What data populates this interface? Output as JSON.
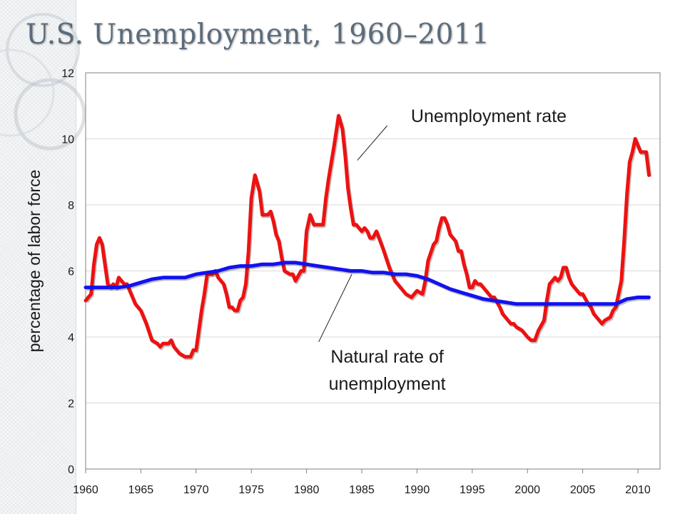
{
  "slide": {
    "title": "U.S. Unemployment, 1960–2011"
  },
  "chart_data": {
    "type": "line",
    "title": "",
    "xlabel": "",
    "ylabel": "percentage of labor force",
    "xlim": [
      1960,
      2011
    ],
    "ylim": [
      0,
      12
    ],
    "x_ticks": [
      "1960",
      "1965",
      "1970",
      "1975",
      "1980",
      "1985",
      "1990",
      "1995",
      "2000",
      "2005",
      "2010"
    ],
    "y_ticks": [
      "0",
      "2",
      "4",
      "6",
      "8",
      "10",
      "12"
    ],
    "grid": true,
    "series": [
      {
        "name": "Unemployment rate",
        "color": "#ee1111",
        "points": [
          [
            1960.0,
            5.1
          ],
          [
            1960.5,
            5.3
          ],
          [
            1960.75,
            6.2
          ],
          [
            1961.0,
            6.8
          ],
          [
            1961.25,
            7.0
          ],
          [
            1961.5,
            6.8
          ],
          [
            1961.75,
            6.2
          ],
          [
            1962.0,
            5.6
          ],
          [
            1962.25,
            5.5
          ],
          [
            1962.5,
            5.6
          ],
          [
            1962.75,
            5.5
          ],
          [
            1963.0,
            5.8
          ],
          [
            1963.25,
            5.7
          ],
          [
            1963.5,
            5.6
          ],
          [
            1963.75,
            5.6
          ],
          [
            1964.0,
            5.4
          ],
          [
            1964.5,
            5.0
          ],
          [
            1964.75,
            4.9
          ],
          [
            1965.0,
            4.8
          ],
          [
            1965.5,
            4.4
          ],
          [
            1966.0,
            3.9
          ],
          [
            1966.5,
            3.8
          ],
          [
            1966.75,
            3.7
          ],
          [
            1967.0,
            3.8
          ],
          [
            1967.5,
            3.8
          ],
          [
            1967.75,
            3.9
          ],
          [
            1968.0,
            3.7
          ],
          [
            1968.5,
            3.5
          ],
          [
            1969.0,
            3.4
          ],
          [
            1969.5,
            3.4
          ],
          [
            1969.75,
            3.6
          ],
          [
            1970.0,
            3.6
          ],
          [
            1970.5,
            4.8
          ],
          [
            1970.75,
            5.3
          ],
          [
            1971.0,
            5.9
          ],
          [
            1971.5,
            5.9
          ],
          [
            1971.75,
            6.0
          ],
          [
            1972.0,
            5.8
          ],
          [
            1972.5,
            5.6
          ],
          [
            1972.75,
            5.3
          ],
          [
            1973.0,
            4.9
          ],
          [
            1973.25,
            4.9
          ],
          [
            1973.5,
            4.8
          ],
          [
            1973.75,
            4.8
          ],
          [
            1974.0,
            5.1
          ],
          [
            1974.25,
            5.2
          ],
          [
            1974.5,
            5.6
          ],
          [
            1974.75,
            6.6
          ],
          [
            1975.0,
            8.2
          ],
          [
            1975.33,
            8.9
          ],
          [
            1975.75,
            8.4
          ],
          [
            1976.0,
            7.7
          ],
          [
            1976.5,
            7.7
          ],
          [
            1976.75,
            7.8
          ],
          [
            1977.0,
            7.5
          ],
          [
            1977.25,
            7.1
          ],
          [
            1977.5,
            6.9
          ],
          [
            1977.75,
            6.4
          ],
          [
            1978.0,
            6.0
          ],
          [
            1978.5,
            5.9
          ],
          [
            1978.75,
            5.9
          ],
          [
            1979.0,
            5.7
          ],
          [
            1979.5,
            6.0
          ],
          [
            1979.75,
            6.0
          ],
          [
            1980.0,
            7.2
          ],
          [
            1980.33,
            7.7
          ],
          [
            1980.67,
            7.4
          ],
          [
            1981.0,
            7.4
          ],
          [
            1981.5,
            7.4
          ],
          [
            1981.75,
            8.2
          ],
          [
            1982.0,
            8.8
          ],
          [
            1982.5,
            9.8
          ],
          [
            1982.9,
            10.7
          ],
          [
            1983.25,
            10.3
          ],
          [
            1983.5,
            9.5
          ],
          [
            1983.75,
            8.5
          ],
          [
            1984.0,
            7.9
          ],
          [
            1984.25,
            7.4
          ],
          [
            1984.5,
            7.4
          ],
          [
            1984.75,
            7.3
          ],
          [
            1985.0,
            7.2
          ],
          [
            1985.25,
            7.3
          ],
          [
            1985.5,
            7.2
          ],
          [
            1985.75,
            7.0
          ],
          [
            1986.0,
            7.0
          ],
          [
            1986.33,
            7.2
          ],
          [
            1986.67,
            6.9
          ],
          [
            1987.0,
            6.6
          ],
          [
            1987.5,
            6.1
          ],
          [
            1987.75,
            5.9
          ],
          [
            1988.0,
            5.7
          ],
          [
            1988.5,
            5.5
          ],
          [
            1988.75,
            5.4
          ],
          [
            1989.0,
            5.3
          ],
          [
            1989.5,
            5.2
          ],
          [
            1989.75,
            5.3
          ],
          [
            1990.0,
            5.4
          ],
          [
            1990.5,
            5.3
          ],
          [
            1990.75,
            5.7
          ],
          [
            1991.0,
            6.3
          ],
          [
            1991.5,
            6.8
          ],
          [
            1991.75,
            6.9
          ],
          [
            1992.0,
            7.3
          ],
          [
            1992.25,
            7.6
          ],
          [
            1992.5,
            7.6
          ],
          [
            1992.75,
            7.4
          ],
          [
            1993.0,
            7.1
          ],
          [
            1993.5,
            6.9
          ],
          [
            1993.75,
            6.6
          ],
          [
            1994.0,
            6.6
          ],
          [
            1994.25,
            6.2
          ],
          [
            1994.5,
            5.9
          ],
          [
            1994.75,
            5.5
          ],
          [
            1995.0,
            5.5
          ],
          [
            1995.25,
            5.7
          ],
          [
            1995.5,
            5.6
          ],
          [
            1995.75,
            5.6
          ],
          [
            1996.0,
            5.5
          ],
          [
            1996.5,
            5.3
          ],
          [
            1996.75,
            5.2
          ],
          [
            1997.0,
            5.2
          ],
          [
            1997.5,
            4.9
          ],
          [
            1997.75,
            4.7
          ],
          [
            1998.0,
            4.6
          ],
          [
            1998.5,
            4.4
          ],
          [
            1998.75,
            4.4
          ],
          [
            1999.0,
            4.3
          ],
          [
            1999.5,
            4.2
          ],
          [
            1999.75,
            4.1
          ],
          [
            2000.0,
            4.0
          ],
          [
            2000.33,
            3.9
          ],
          [
            2000.67,
            3.9
          ],
          [
            2001.0,
            4.2
          ],
          [
            2001.5,
            4.5
          ],
          [
            2001.75,
            5.1
          ],
          [
            2002.0,
            5.6
          ],
          [
            2002.5,
            5.8
          ],
          [
            2002.75,
            5.7
          ],
          [
            2003.0,
            5.8
          ],
          [
            2003.25,
            6.1
          ],
          [
            2003.5,
            6.1
          ],
          [
            2003.75,
            5.8
          ],
          [
            2004.0,
            5.6
          ],
          [
            2004.25,
            5.5
          ],
          [
            2004.5,
            5.4
          ],
          [
            2004.75,
            5.3
          ],
          [
            2005.0,
            5.3
          ],
          [
            2005.5,
            5.0
          ],
          [
            2005.75,
            4.9
          ],
          [
            2006.0,
            4.7
          ],
          [
            2006.5,
            4.5
          ],
          [
            2006.75,
            4.4
          ],
          [
            2007.0,
            4.5
          ],
          [
            2007.5,
            4.6
          ],
          [
            2007.75,
            4.8
          ],
          [
            2008.0,
            4.9
          ],
          [
            2008.5,
            5.7
          ],
          [
            2008.75,
            6.9
          ],
          [
            2009.0,
            8.3
          ],
          [
            2009.25,
            9.3
          ],
          [
            2009.5,
            9.6
          ],
          [
            2009.75,
            10.0
          ],
          [
            2010.0,
            9.8
          ],
          [
            2010.25,
            9.6
          ],
          [
            2010.5,
            9.6
          ],
          [
            2010.75,
            9.6
          ],
          [
            2011.0,
            8.9
          ]
        ]
      },
      {
        "name": "Natural rate of unemployment",
        "color": "#1212ee",
        "points": [
          [
            1960.0,
            5.5
          ],
          [
            1962.0,
            5.5
          ],
          [
            1963.0,
            5.5
          ],
          [
            1964.0,
            5.55
          ],
          [
            1965.0,
            5.65
          ],
          [
            1966.0,
            5.75
          ],
          [
            1967.0,
            5.8
          ],
          [
            1968.0,
            5.8
          ],
          [
            1969.0,
            5.8
          ],
          [
            1970.0,
            5.9
          ],
          [
            1971.0,
            5.95
          ],
          [
            1972.0,
            6.0
          ],
          [
            1973.0,
            6.1
          ],
          [
            1974.0,
            6.15
          ],
          [
            1975.0,
            6.15
          ],
          [
            1976.0,
            6.2
          ],
          [
            1977.0,
            6.2
          ],
          [
            1978.0,
            6.25
          ],
          [
            1979.0,
            6.25
          ],
          [
            1980.0,
            6.2
          ],
          [
            1981.0,
            6.15
          ],
          [
            1982.0,
            6.1
          ],
          [
            1983.0,
            6.05
          ],
          [
            1984.0,
            6.0
          ],
          [
            1985.0,
            6.0
          ],
          [
            1986.0,
            5.95
          ],
          [
            1987.0,
            5.95
          ],
          [
            1988.0,
            5.9
          ],
          [
            1989.0,
            5.9
          ],
          [
            1990.0,
            5.85
          ],
          [
            1991.0,
            5.75
          ],
          [
            1992.0,
            5.6
          ],
          [
            1993.0,
            5.45
          ],
          [
            1994.0,
            5.35
          ],
          [
            1995.0,
            5.25
          ],
          [
            1996.0,
            5.15
          ],
          [
            1997.0,
            5.1
          ],
          [
            1998.0,
            5.05
          ],
          [
            1999.0,
            5.0
          ],
          [
            2000.0,
            5.0
          ],
          [
            2001.0,
            5.0
          ],
          [
            2002.0,
            5.0
          ],
          [
            2003.0,
            5.0
          ],
          [
            2004.0,
            5.0
          ],
          [
            2005.0,
            5.0
          ],
          [
            2006.0,
            5.0
          ],
          [
            2007.0,
            5.0
          ],
          [
            2008.0,
            5.0
          ],
          [
            2009.0,
            5.15
          ],
          [
            2010.0,
            5.2
          ],
          [
            2011.0,
            5.2
          ]
        ]
      }
    ],
    "annotations": [
      {
        "text": "Unemployment rate",
        "series": 0,
        "lines": [
          "Unemployment rate"
        ]
      },
      {
        "text": "Natural rate of unemployment",
        "series": 1,
        "lines": [
          "Natural rate of",
          "unemployment"
        ]
      }
    ]
  }
}
